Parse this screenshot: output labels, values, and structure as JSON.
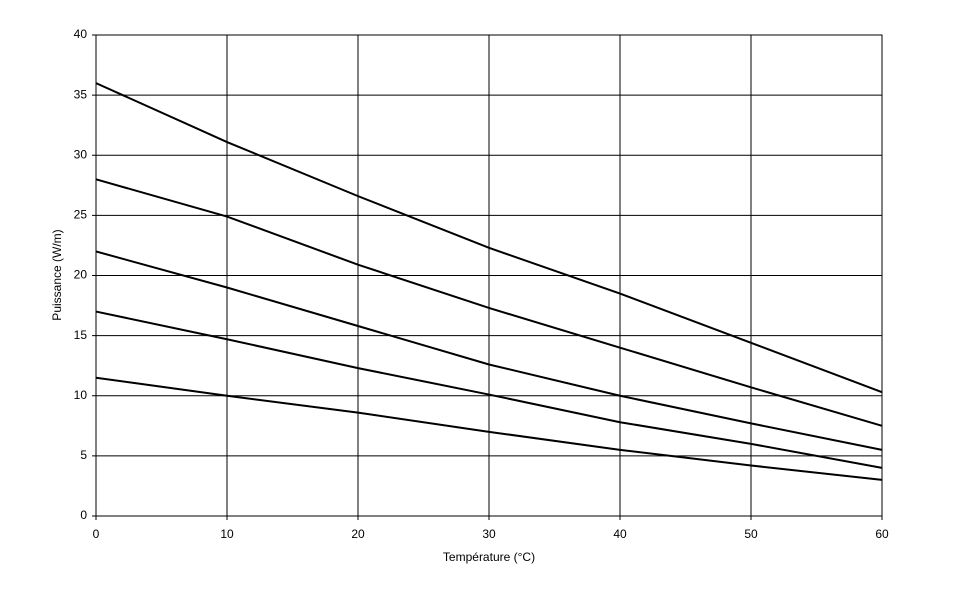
{
  "chart_data": {
    "type": "line",
    "x_label": "Température (°C)",
    "y_label": "Puissance (W/m)",
    "x": [
      0,
      10,
      20,
      30,
      40,
      50,
      60
    ],
    "series": [
      {
        "color": "#000000",
        "values": [
          36,
          31.1,
          26.6,
          22.3,
          18.5,
          14.4,
          10.3
        ]
      },
      {
        "color": "#000000",
        "values": [
          28,
          24.9,
          20.9,
          17.3,
          14,
          10.7,
          7.5
        ]
      },
      {
        "color": "#000000",
        "values": [
          22,
          19,
          15.8,
          12.6,
          10,
          7.7,
          5.5
        ]
      },
      {
        "color": "#000000",
        "values": [
          17,
          14.7,
          12.3,
          10.1,
          7.8,
          6,
          4
        ]
      },
      {
        "color": "#000000",
        "values": [
          11.5,
          10,
          8.6,
          7,
          5.5,
          4.2,
          3
        ]
      }
    ],
    "xlim": [
      0,
      60
    ],
    "xticks": [
      0,
      10,
      20,
      30,
      40,
      50,
      60
    ],
    "ylim": [
      0,
      40
    ],
    "yticks": [
      0,
      5,
      10,
      15,
      20,
      25,
      30,
      35,
      40
    ],
    "grid": true
  }
}
